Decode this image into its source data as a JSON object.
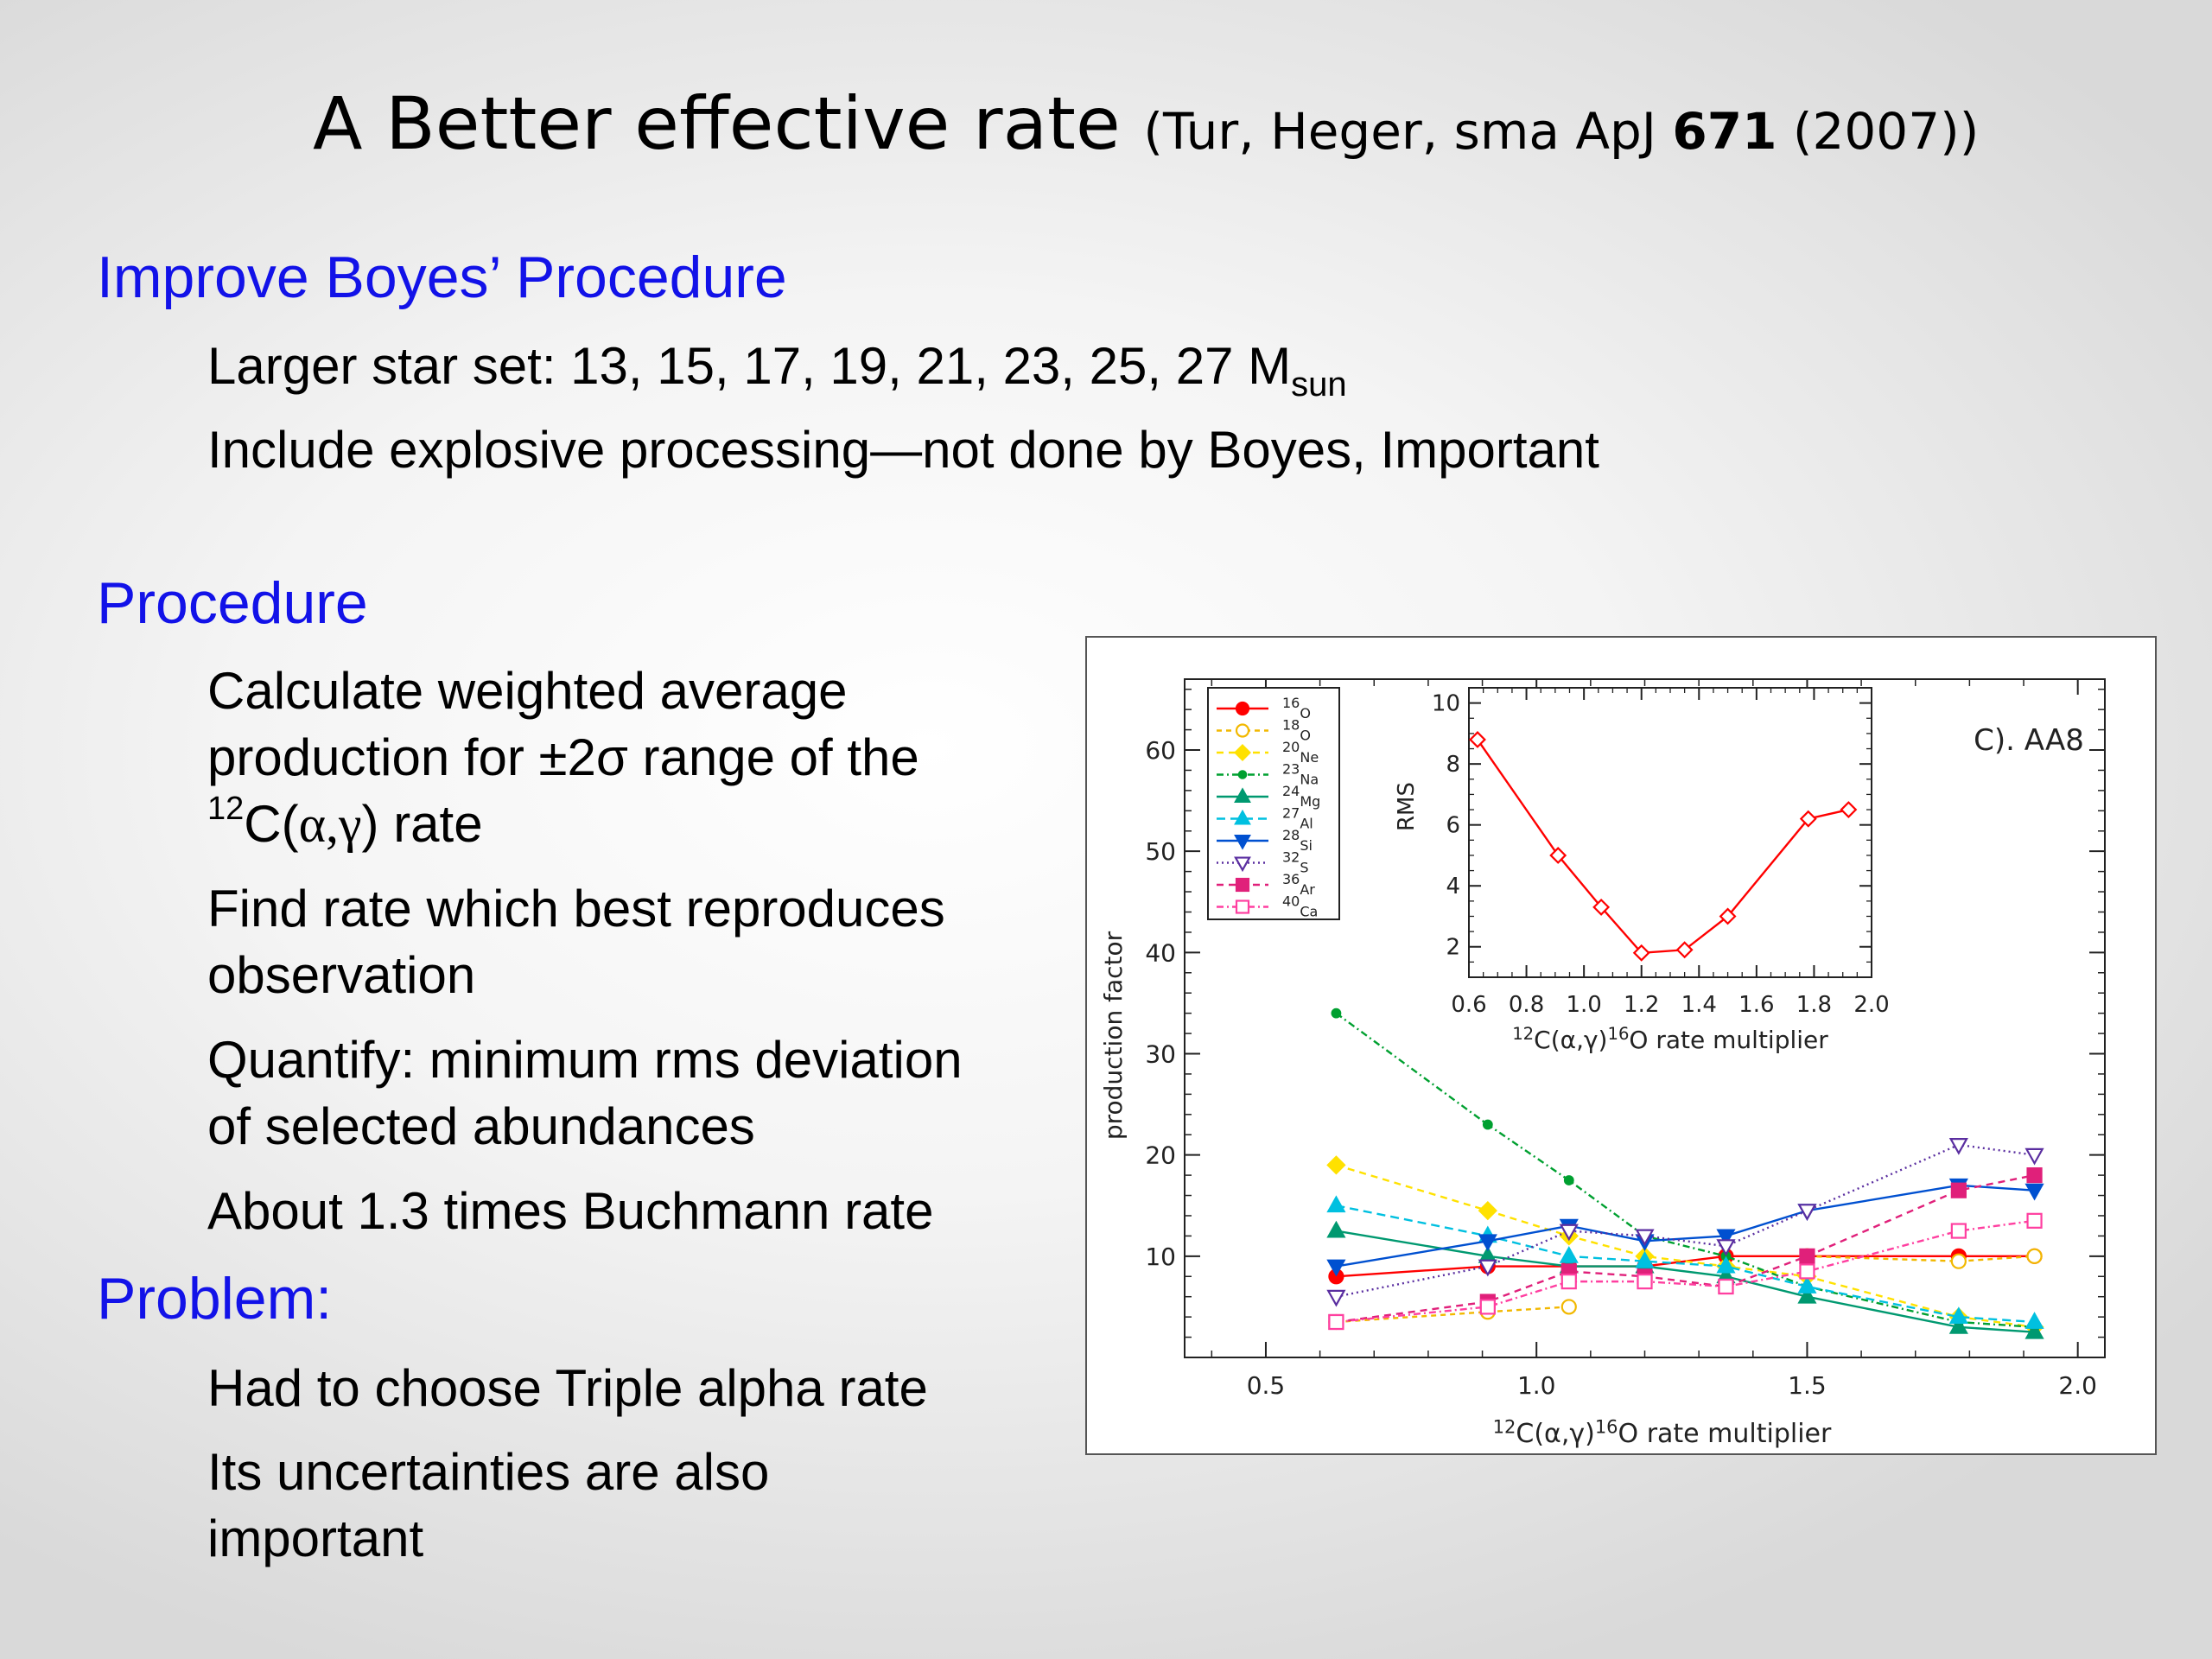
{
  "slide": {
    "title_main": "A Better effective rate",
    "title_cite_pre": "(Tur, Heger, sma ApJ ",
    "title_cite_bold": "671",
    "title_cite_post": " (2007))"
  },
  "sections": [
    {
      "heading": "Improve Boyes’ Procedure",
      "items": [
        {
          "pre": "Larger star set: 13, 15, 17, 19, 21, 23, 25, 27 M",
          "sub": "sun"
        },
        {
          "text": "Include explosive processing—not done by Boyes, Important"
        }
      ]
    },
    {
      "heading": "Procedure",
      "items": [
        {
          "lines": [
            "Calculate weighted average",
            "production for ±2σ range of the"
          ],
          "sup": "12",
          "tail_pre": "C(",
          "tail_greek": "α,γ",
          "tail_post": ") rate"
        },
        {
          "lines": [
            "Find rate which best reproduces",
            "observation"
          ]
        },
        {
          "lines": [
            "Quantify:  minimum rms deviation",
            "of selected abundances"
          ]
        },
        {
          "text": "About 1.3 times Buchmann rate"
        }
      ]
    },
    {
      "heading": "Problem:",
      "items": [
        {
          "text": "Had to choose Triple alpha rate"
        },
        {
          "lines": [
            "Its uncertainties are also",
            "important"
          ]
        }
      ]
    }
  ],
  "chart_data": [
    {
      "type": "line",
      "panel_label": "C).  AA8",
      "ylabel": "production factor",
      "xlabel_sup1": "12",
      "xlabel_mid": "C(α,γ)",
      "xlabel_sup2": "16",
      "xlabel_post": "O rate multiplier",
      "xlim": [
        0.35,
        2.05
      ],
      "ylim": [
        0,
        67
      ],
      "xticks": [
        "0.5",
        "1.0",
        "1.5",
        "2.0"
      ],
      "xtick_values": [
        0.5,
        1.0,
        1.5,
        2.0
      ],
      "yticks": [
        "10",
        "20",
        "30",
        "40",
        "50",
        "60"
      ],
      "ytick_values": [
        10,
        20,
        30,
        40,
        50,
        60
      ],
      "x": [
        0.63,
        0.91,
        1.06,
        1.2,
        1.35,
        1.5,
        1.78,
        1.92
      ],
      "series": [
        {
          "name": "16O",
          "sup": "16",
          "el": "O",
          "color": "#ff0000",
          "dash": "",
          "marker": "circle",
          "filled": true,
          "values": [
            8,
            9,
            9,
            9,
            10,
            10,
            10,
            10
          ]
        },
        {
          "name": "18O",
          "sup": "18",
          "el": "O",
          "color": "#f2b800",
          "dash": "6,5",
          "marker": "circle",
          "filled": false,
          "values": [
            3.5,
            4.5,
            5,
            null,
            null,
            10,
            9.5,
            10
          ]
        },
        {
          "name": "20Ne",
          "sup": "20",
          "el": "Ne",
          "color": "#ffe100",
          "dash": "8,6",
          "marker": "diamond",
          "filled": true,
          "values": [
            19,
            14.5,
            12,
            10,
            9,
            8,
            4,
            3
          ]
        },
        {
          "name": "23Na",
          "sup": "23",
          "el": "Na",
          "color": "#00a030",
          "dash": "8,4,2,4",
          "marker": "dot",
          "filled": true,
          "values": [
            34,
            23,
            17.5,
            12,
            10,
            7,
            3.5,
            3
          ]
        },
        {
          "name": "24Mg",
          "sup": "24",
          "el": "Mg",
          "color": "#009970",
          "dash": "",
          "marker": "triangle",
          "filled": true,
          "values": [
            12.5,
            10,
            9,
            9,
            8,
            6,
            3,
            2.5
          ]
        },
        {
          "name": "27Al",
          "sup": "27",
          "el": "Al",
          "color": "#00c0e0",
          "dash": "10,6",
          "marker": "triangle",
          "filled": true,
          "values": [
            15,
            12,
            10,
            9.5,
            9,
            7,
            4,
            3.5
          ]
        },
        {
          "name": "28Si",
          "sup": "28",
          "el": "Si",
          "color": "#0050d0",
          "dash": "",
          "marker": "triangle-down",
          "filled": true,
          "values": [
            9,
            11.5,
            13,
            11.5,
            12,
            14.5,
            17,
            16.5
          ]
        },
        {
          "name": "32S",
          "sup": "32",
          "el": "S",
          "color": "#5a2ea0",
          "dash": "2,4",
          "marker": "triangle-down",
          "filled": false,
          "values": [
            6,
            9,
            12.5,
            12,
            11,
            14.5,
            21,
            20
          ]
        },
        {
          "name": "36Ar",
          "sup": "36",
          "el": "Ar",
          "color": "#e0207a",
          "dash": "8,6",
          "marker": "square",
          "filled": true,
          "values": [
            3.5,
            5.5,
            8.5,
            8,
            7,
            10,
            16.5,
            18
          ]
        },
        {
          "name": "40Ca",
          "sup": "40",
          "el": "Ca",
          "color": "#ff3fa0",
          "dash": "8,4,2,4",
          "marker": "square",
          "filled": false,
          "values": [
            3.5,
            5,
            7.5,
            7.5,
            7,
            8.5,
            12.5,
            13.5
          ]
        }
      ]
    },
    {
      "type": "line",
      "ylabel": "RMS",
      "xlabel_sup1": "12",
      "xlabel_mid": "C(α,γ)",
      "xlabel_sup2": "16",
      "xlabel_post": "O rate multiplier",
      "xlim": [
        0.6,
        2.0
      ],
      "ylim": [
        1.0,
        10.5
      ],
      "xticks": [
        "0.6",
        "0.8",
        "1.0",
        "1.2",
        "1.4",
        "1.6",
        "1.8",
        "2.0"
      ],
      "xtick_values": [
        0.6,
        0.8,
        1.0,
        1.2,
        1.4,
        1.6,
        1.8,
        2.0
      ],
      "yticks": [
        "2",
        "4",
        "6",
        "8",
        "10"
      ],
      "ytick_values": [
        2,
        4,
        6,
        8,
        10
      ],
      "x": [
        0.63,
        0.91,
        1.06,
        1.2,
        1.35,
        1.5,
        1.78,
        1.92
      ],
      "series": [
        {
          "color": "#ff0000",
          "marker": "diamond",
          "filled": false,
          "values": [
            8.8,
            5.0,
            3.3,
            1.8,
            1.9,
            3.0,
            6.2,
            6.5
          ]
        }
      ]
    }
  ]
}
